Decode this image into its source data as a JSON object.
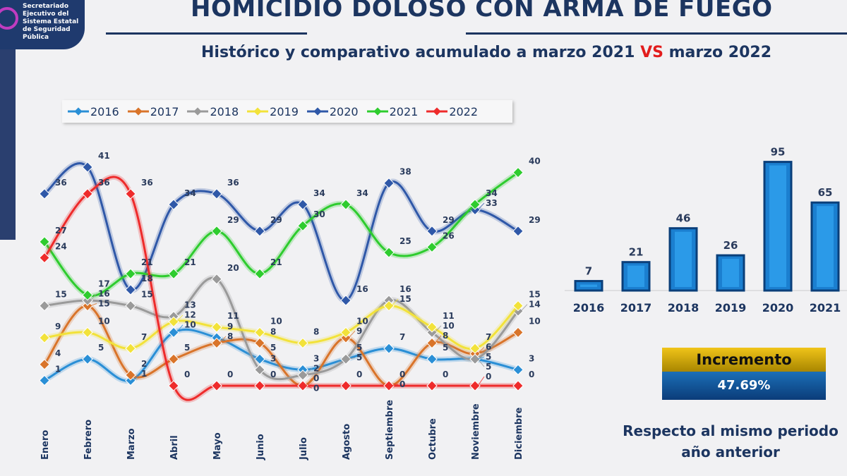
{
  "logo": {
    "text": "Secretariado Ejecutivo del Sistema Estatal de Seguridad Pública"
  },
  "title": "HOMICIDIO DOLOSO CON ARMA DE FUEGO",
  "subtitle": {
    "pre": "Histórico y comparativo acumulado a marzo 2021 ",
    "vs": "VS",
    "post": " marzo 2022"
  },
  "incremento": {
    "label": "Incremento",
    "value": "47.69%",
    "note1": "Respecto al mismo periodo",
    "note2": "año anterior"
  },
  "chart_data": [
    {
      "type": "line",
      "categories": [
        "Enero",
        "Febrero",
        "Marzo",
        "Abril",
        "Mayo",
        "Junio",
        "Julio",
        "Agosto",
        "Septiembre",
        "Octubre",
        "Noviembre",
        "Diciembre"
      ],
      "series": [
        {
          "name": "2016",
          "color": "#2a8fd6",
          "values": [
            1,
            5,
            1,
            10,
            9,
            5,
            3,
            5,
            7,
            5,
            5,
            3
          ]
        },
        {
          "name": "2017",
          "color": "#d9742a",
          "values": [
            4,
            15,
            2,
            5,
            8,
            8,
            0,
            9,
            0,
            8,
            6,
            10
          ]
        },
        {
          "name": "2018",
          "color": "#9a9a9a",
          "values": [
            15,
            16,
            15,
            13,
            20,
            3,
            2,
            5,
            16,
            10,
            5,
            14
          ]
        },
        {
          "name": "2019",
          "color": "#f2e23a",
          "values": [
            9,
            10,
            7,
            12,
            11,
            10,
            8,
            10,
            15,
            11,
            7,
            15
          ]
        },
        {
          "name": "2020",
          "color": "#2f58a8",
          "values": [
            36,
            41,
            18,
            34,
            36,
            29,
            34,
            16,
            38,
            29,
            33,
            29
          ]
        },
        {
          "name": "2021",
          "color": "#2ecc2e",
          "values": [
            27,
            17,
            21,
            21,
            29,
            21,
            30,
            34,
            25,
            26,
            34,
            40
          ]
        },
        {
          "name": "2022",
          "color": "#ee2b2b",
          "values": [
            24,
            36,
            36,
            0,
            0,
            0,
            0,
            0,
            0,
            0,
            0,
            0
          ]
        }
      ]
    },
    {
      "type": "bar",
      "categories": [
        "2016",
        "2017",
        "2018",
        "2019",
        "2020",
        "2021"
      ],
      "values": [
        7,
        21,
        46,
        26,
        95,
        65
      ],
      "color": "#1b7fd0"
    }
  ]
}
